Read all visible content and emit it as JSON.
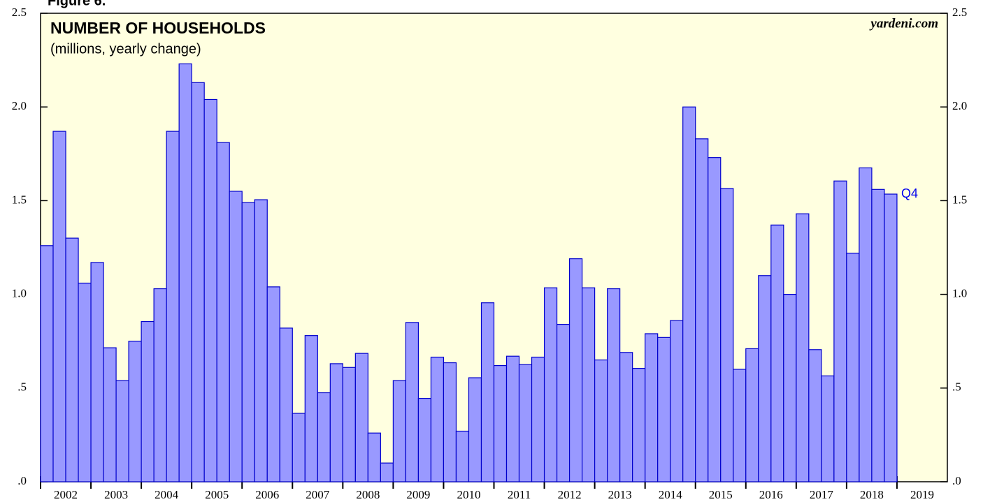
{
  "chart_data": {
    "type": "bar",
    "figure_label": "Figure 6.",
    "title": "NUMBER OF HOUSEHOLDS",
    "subtitle": "(millions, yearly change)",
    "source": "yardeni.com",
    "annotation": "Q4",
    "color": "#9999ff",
    "edge_color": "#0000cc",
    "background": "#ffffe0",
    "categories": [
      null,
      null,
      null,
      null,
      null,
      null,
      null,
      null,
      null,
      null,
      null,
      null,
      null,
      null,
      null,
      null,
      null,
      null,
      null,
      null,
      null,
      null,
      null,
      null,
      null,
      null,
      null,
      null,
      null,
      null,
      null,
      null,
      null,
      null,
      null,
      null,
      null,
      null,
      null,
      null,
      null,
      null,
      null,
      null,
      null,
      null,
      null,
      null,
      null,
      null,
      null,
      null,
      null,
      null,
      null,
      null,
      null,
      null,
      null,
      null,
      null,
      null,
      null,
      null,
      null,
      null,
      null,
      null
    ],
    "values": [
      1.26,
      1.87,
      1.3,
      1.06,
      1.17,
      0.715,
      0.54,
      0.75,
      0.855,
      1.03,
      1.87,
      2.23,
      2.13,
      2.04,
      1.81,
      1.55,
      1.49,
      1.505,
      1.04,
      0.82,
      0.365,
      0.78,
      0.475,
      0.63,
      0.61,
      0.685,
      0.26,
      0.1,
      0.54,
      0.85,
      0.445,
      0.665,
      0.635,
      0.27,
      0.555,
      0.955,
      0.62,
      0.67,
      0.625,
      0.665,
      1.035,
      0.84,
      1.19,
      1.035,
      0.65,
      1.03,
      0.69,
      0.605,
      0.79,
      0.77,
      0.86,
      2.0,
      1.83,
      1.73,
      1.565,
      0.6,
      0.71,
      1.1,
      1.37,
      1.0,
      1.43,
      0.705,
      0.565,
      1.605,
      1.22,
      1.675,
      1.56,
      1.535
    ],
    "xlim": [
      2002,
      2020
    ],
    "xticks": [
      2002,
      2003,
      2004,
      2005,
      2006,
      2007,
      2008,
      2009,
      2010,
      2011,
      2012,
      2013,
      2014,
      2015,
      2016,
      2017,
      2018,
      2019
    ],
    "ylim": [
      0,
      2.5
    ],
    "yticks": [
      {
        "value": 0,
        "label": ".0"
      },
      {
        "value": 0.5,
        "label": ".5"
      },
      {
        "value": 1,
        "label": "1.0"
      },
      {
        "value": 1.5,
        "label": "1.5"
      },
      {
        "value": 2,
        "label": "2.0"
      },
      {
        "value": 2.5,
        "label": "2.5"
      }
    ]
  }
}
